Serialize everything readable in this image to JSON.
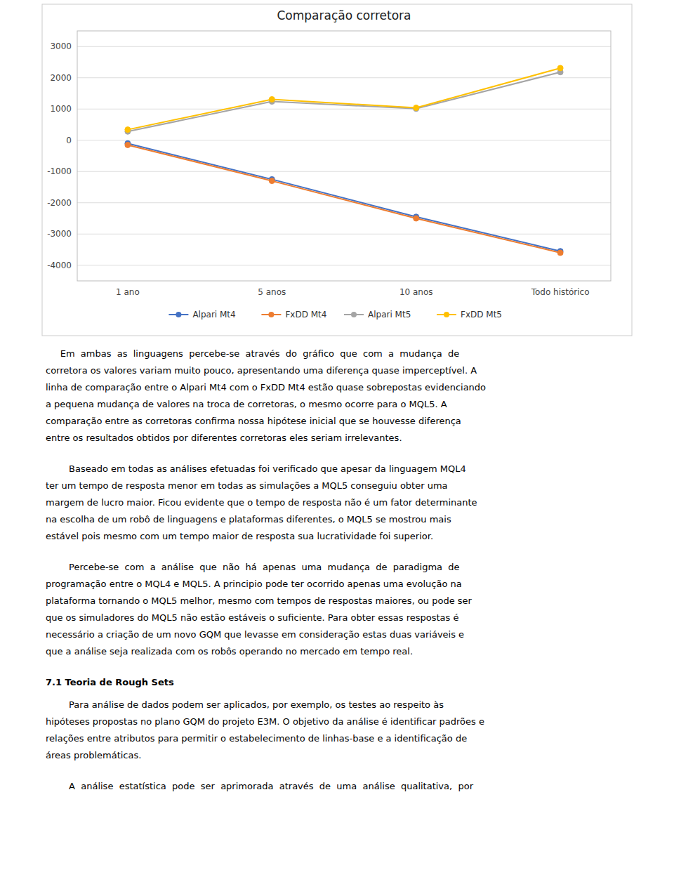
{
  "chart_data": {
    "type": "line",
    "title": "Comparação corretora",
    "categories": [
      "1 ano",
      "5 anos",
      "10 anos",
      "Todo histórico"
    ],
    "series": [
      {
        "name": "Alpari Mt4",
        "color": "#4472C4",
        "marker": "circle",
        "values": [
          -100,
          -1250,
          -2450,
          -3550
        ]
      },
      {
        "name": "FxDD Mt4",
        "color": "#ED7D31",
        "marker": "circle",
        "values": [
          -150,
          -1300,
          -2500,
          -3600
        ]
      },
      {
        "name": "Alpari Mt5",
        "color": "#A5A5A5",
        "marker": "circle",
        "values": [
          280,
          1240,
          1010,
          2180
        ]
      },
      {
        "name": "FxDD Mt5",
        "color": "#FFC000",
        "marker": "circle",
        "values": [
          340,
          1310,
          1040,
          2310
        ]
      }
    ],
    "ylim": [
      -4500,
      3500
    ],
    "yticks": [
      -4000,
      -3000,
      -2000,
      -1000,
      0,
      1000,
      2000,
      3000
    ],
    "grid": true,
    "legend": "bottom"
  },
  "body": [
    {
      "lines": [
        "     Em  ambas  as  linguagens  percebe-se  através  do  gráfico  que  com  a  mudança  de",
        "corretora os valores variam muito pouco, apresentando uma diferença quase imperceptível. A",
        "linha de comparação entre o Alpari Mt4 com o FxDD Mt4 estão quase sobrepostas evidenciando",
        "a pequena mudança de valores na troca de corretoras, o mesmo ocorre para o MQL5. A",
        "comparação entre as corretoras confirma nossa hipótese inicial que se houvesse diferença",
        "entre os resultados obtidos por diferentes corretoras eles seriam irrelevantes."
      ]
    },
    {
      "lines": [
        "        Baseado em todas as análises efetuadas foi verificado que apesar da linguagem MQL4",
        "ter um tempo de resposta menor em todas as simulações a MQL5 conseguiu obter uma",
        "margem de lucro maior. Ficou evidente que o tempo de resposta não é um fator determinante",
        "na escolha de um robô de linguagens e plataformas diferentes, o MQL5 se mostrou mais",
        "estável pois mesmo com um tempo maior de resposta sua lucratividade foi superior."
      ]
    },
    {
      "lines": [
        "        Percebe-se  com  a  análise  que  não  há  apenas  uma  mudança  de  paradigma  de",
        "programação entre o MQL4 e MQL5. A principio pode ter ocorrido apenas uma evolução na",
        "plataforma tornando o MQL5 melhor, mesmo com tempos de respostas maiores, ou pode ser",
        "que os simuladores do MQL5 não estão estáveis o suficiente. Para obter essas respostas é",
        "necessário a criação de um novo GQM que levasse em consideração estas duas variáveis e",
        "que a análise seja realizada com os robôs operando no mercado em tempo real."
      ]
    },
    {
      "heading": "7.1 Teoria de Rough Sets"
    },
    {
      "lines": [
        "        Para análise de dados podem ser aplicados, por exemplo, os testes ao respeito às",
        "hipóteses propostas no plano GQM do projeto E3M. O objetivo da análise é identificar padrões e",
        "relações entre atributos para permitir o estabelecimento de linhas-base e a identificação de",
        "áreas problemáticas."
      ]
    },
    {
      "lines": [
        "        A  análise  estatística  pode  ser  aprimorada  através  de  uma  análise  qualitativa,  por"
      ]
    }
  ]
}
